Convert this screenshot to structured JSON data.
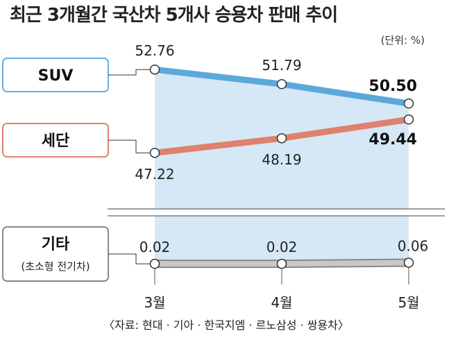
{
  "title": "최근 3개월간 국산차 5개사 승용차 판매 추이",
  "unit_label": "(단위: %)",
  "source": "〈자료: 현대 · 기아 · 한국지엠 · 르노삼성 · 쌍용차〉",
  "colors": {
    "suv": "#5ba8dc",
    "sedan": "#e0806e",
    "other": "#c8c8c8",
    "fill": "#d6e8f5",
    "suv_border": "#6aaee0",
    "sedan_border": "#e0806e",
    "other_border": "#888888"
  },
  "chart_data": {
    "type": "line",
    "categories": [
      "3월",
      "4월",
      "5월"
    ],
    "series": [
      {
        "key": "suv",
        "name": "SUV",
        "values": [
          52.76,
          51.79,
          50.5
        ],
        "labels": [
          "52.76",
          "51.79",
          "50.50"
        ]
      },
      {
        "key": "sedan",
        "name": "세단",
        "values": [
          47.22,
          48.19,
          49.44
        ],
        "labels": [
          "47.22",
          "48.19",
          "49.44"
        ]
      },
      {
        "key": "other",
        "name": "기타",
        "sub_name": "(초소형 전기차)",
        "values": [
          0.02,
          0.02,
          0.06
        ],
        "labels": [
          "0.02",
          "0.02",
          "0.06"
        ]
      }
    ],
    "ylim_upper": [
      47,
      53
    ],
    "ylim_lower": [
      0,
      1
    ],
    "axis_break": true,
    "grid": false,
    "legend": "left"
  }
}
